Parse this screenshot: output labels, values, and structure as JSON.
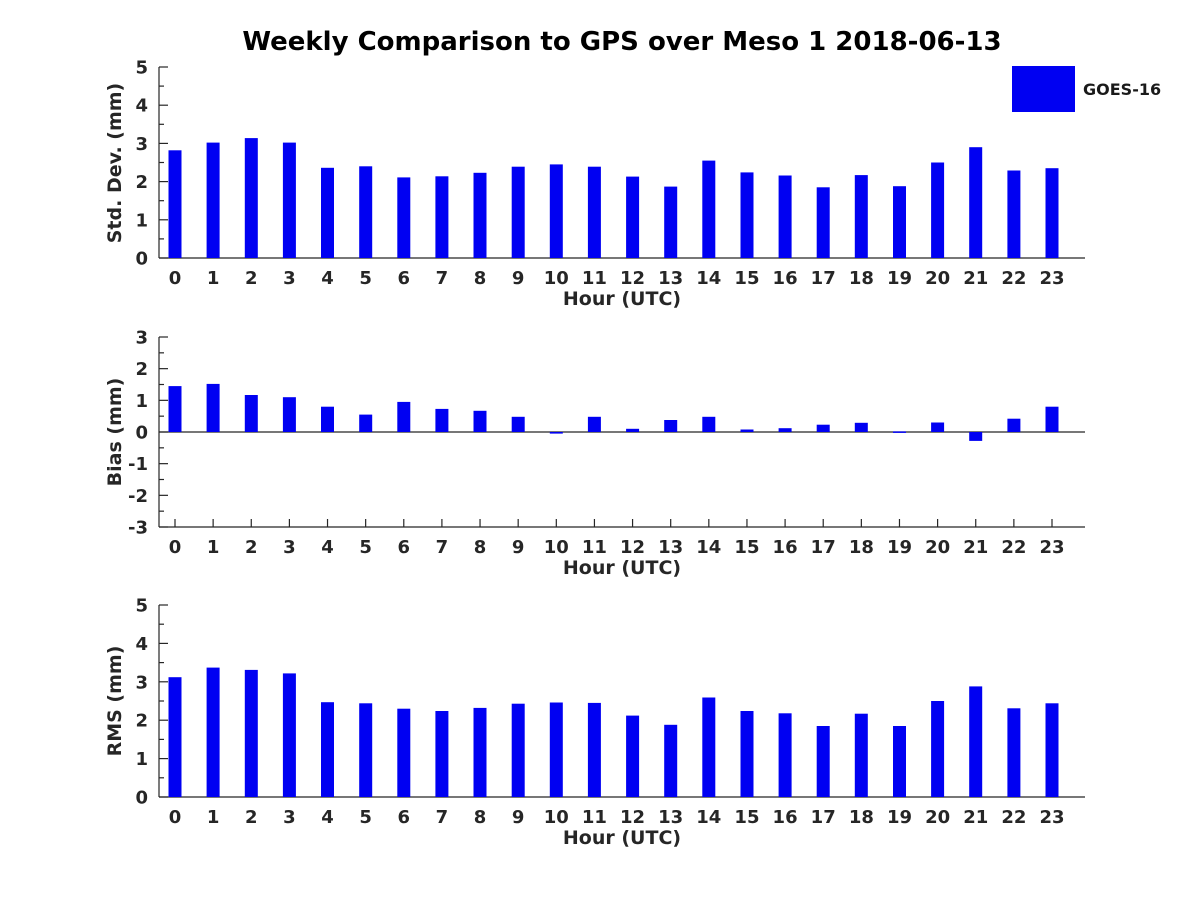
{
  "title": "Weekly Comparison to GPS over Meso 1 2018-06-13",
  "legend": {
    "label": "GOES-16",
    "color": "#0000f2"
  },
  "chart_data": [
    {
      "type": "bar",
      "series_name": "GOES-16",
      "ylabel": "Std. Dev. (mm)",
      "xlabel": "Hour (UTC)",
      "categories": [
        "0",
        "1",
        "2",
        "3",
        "4",
        "5",
        "6",
        "7",
        "8",
        "9",
        "10",
        "11",
        "12",
        "13",
        "14",
        "15",
        "16",
        "17",
        "18",
        "19",
        "20",
        "21",
        "22",
        "23"
      ],
      "values": [
        2.82,
        3.02,
        3.14,
        3.02,
        2.36,
        2.4,
        2.11,
        2.14,
        2.23,
        2.39,
        2.45,
        2.39,
        2.13,
        1.87,
        2.55,
        2.24,
        2.16,
        1.85,
        2.17,
        1.88,
        2.5,
        2.9,
        2.29,
        2.35
      ],
      "ylim": [
        0,
        5
      ],
      "yticks": [
        0,
        1,
        2,
        3,
        4,
        5
      ],
      "grid": false,
      "bar_color": "#0000f2",
      "legend_position": "upper-right-outside"
    },
    {
      "type": "bar",
      "series_name": "GOES-16",
      "ylabel": "Bias (mm)",
      "xlabel": "Hour (UTC)",
      "categories": [
        "0",
        "1",
        "2",
        "3",
        "4",
        "5",
        "6",
        "7",
        "8",
        "9",
        "10",
        "11",
        "12",
        "13",
        "14",
        "15",
        "16",
        "17",
        "18",
        "19",
        "20",
        "21",
        "22",
        "23"
      ],
      "values": [
        1.45,
        1.52,
        1.17,
        1.1,
        0.8,
        0.55,
        0.95,
        0.73,
        0.67,
        0.48,
        -0.05,
        0.48,
        0.1,
        0.38,
        0.48,
        0.08,
        0.12,
        0.23,
        0.29,
        0.02,
        0.3,
        -0.28,
        0.42,
        0.8
      ],
      "ylim": [
        -3,
        3
      ],
      "yticks": [
        -3,
        -2,
        -1,
        0,
        1,
        2,
        3
      ],
      "grid": false,
      "bar_color": "#0000f2"
    },
    {
      "type": "bar",
      "series_name": "GOES-16",
      "ylabel": "RMS (mm)",
      "xlabel": "Hour (UTC)",
      "categories": [
        "0",
        "1",
        "2",
        "3",
        "4",
        "5",
        "6",
        "7",
        "8",
        "9",
        "10",
        "11",
        "12",
        "13",
        "14",
        "15",
        "16",
        "17",
        "18",
        "19",
        "20",
        "21",
        "22",
        "23"
      ],
      "values": [
        3.12,
        3.37,
        3.31,
        3.22,
        2.47,
        2.44,
        2.3,
        2.24,
        2.32,
        2.43,
        2.46,
        2.45,
        2.12,
        1.88,
        2.59,
        2.24,
        2.18,
        1.85,
        2.17,
        1.85,
        2.5,
        2.88,
        2.31,
        2.44
      ],
      "ylim": [
        0,
        5
      ],
      "yticks": [
        0,
        1,
        2,
        3,
        4,
        5
      ],
      "grid": false,
      "bar_color": "#0000f2"
    }
  ]
}
